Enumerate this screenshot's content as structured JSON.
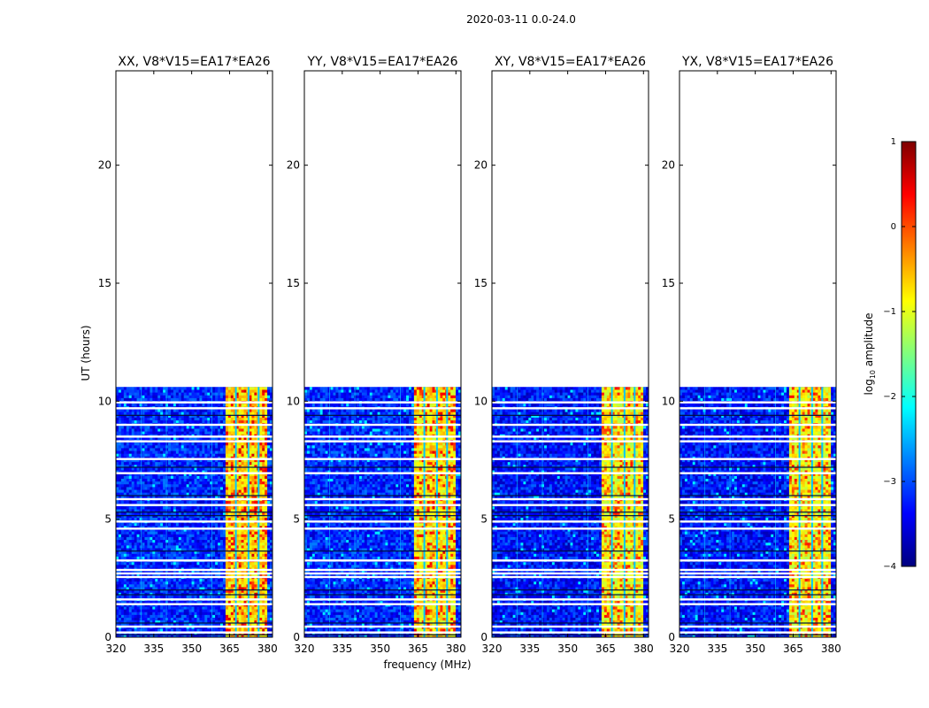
{
  "figure": {
    "suptitle": "2020-03-11 0.0-24.0",
    "ylabel": "UT (hours)",
    "xlabel": "frequency (MHz)"
  },
  "colorbar": {
    "label": "log10 amplitude",
    "label_main": "log",
    "label_sub": "10",
    "label_rest": " amplitude",
    "range": [
      -4,
      1
    ],
    "ticks": [
      1,
      0,
      -1,
      -2,
      -3,
      -4
    ],
    "tick_labels": [
      "1",
      "0",
      "−1",
      "−2",
      "−3",
      "−4"
    ],
    "colormap": [
      "#00007f",
      "#0000ff",
      "#007fff",
      "#00ffff",
      "#7fff7f",
      "#ffff00",
      "#ff7f00",
      "#ff0000",
      "#7f0000"
    ]
  },
  "chart_data": [
    {
      "type": "heatmap",
      "title": "XX, V8*V15=EA17*EA26",
      "xlabel": "frequency (MHz)",
      "ylabel": "UT (hours)",
      "xlim": [
        320,
        382
      ],
      "ylim": [
        0,
        24
      ],
      "xticks": [
        320,
        335,
        350,
        365,
        380
      ],
      "yticks": [
        0,
        5,
        10,
        15,
        20
      ],
      "data_ut_range": [
        0,
        10.6
      ],
      "rfi_band_mhz": [
        363,
        380
      ],
      "typical_log10_amplitude": {
        "background": -3.2,
        "rfi_band": -0.7,
        "rfi_peaks": 0.2
      }
    },
    {
      "type": "heatmap",
      "title": "YY, V8*V15=EA17*EA26",
      "xlabel": "frequency (MHz)",
      "ylabel": "UT (hours)",
      "xlim": [
        320,
        382
      ],
      "ylim": [
        0,
        24
      ],
      "xticks": [
        320,
        335,
        350,
        365,
        380
      ],
      "yticks": [
        0,
        5,
        10,
        15,
        20
      ],
      "data_ut_range": [
        0,
        10.6
      ],
      "rfi_band_mhz": [
        363,
        380
      ],
      "typical_log10_amplitude": {
        "background": -3.2,
        "rfi_band": -0.8,
        "rfi_peaks": 0.1
      }
    },
    {
      "type": "heatmap",
      "title": "XY, V8*V15=EA17*EA26",
      "xlabel": "frequency (MHz)",
      "ylabel": "UT (hours)",
      "xlim": [
        320,
        382
      ],
      "ylim": [
        0,
        24
      ],
      "xticks": [
        320,
        335,
        350,
        365,
        380
      ],
      "yticks": [
        0,
        5,
        10,
        15,
        20
      ],
      "data_ut_range": [
        0,
        10.6
      ],
      "rfi_band_mhz": [
        363,
        380
      ],
      "typical_log10_amplitude": {
        "background": -3.3,
        "rfi_band": -0.9,
        "rfi_peaks": -0.1
      }
    },
    {
      "type": "heatmap",
      "title": "YX, V8*V15=EA17*EA26",
      "xlabel": "frequency (MHz)",
      "ylabel": "UT (hours)",
      "xlim": [
        320,
        382
      ],
      "ylim": [
        0,
        24
      ],
      "xticks": [
        320,
        335,
        350,
        365,
        380
      ],
      "yticks": [
        0,
        5,
        10,
        15,
        20
      ],
      "data_ut_range": [
        0,
        10.6
      ],
      "rfi_band_mhz": [
        363,
        380
      ],
      "typical_log10_amplitude": {
        "background": -3.3,
        "rfi_band": -0.9,
        "rfi_peaks": -0.1
      }
    }
  ],
  "flagged_ut_hours": [
    0.2,
    0.45,
    1.4,
    1.6,
    2.55,
    2.7,
    2.85,
    3.25,
    4.6,
    4.9,
    5.6,
    5.85,
    6.95,
    7.55,
    8.3,
    8.5,
    9.0,
    9.7,
    9.95
  ],
  "dark_ut_hours": [
    0.1,
    0.6,
    1.8,
    2.0,
    3.65,
    5.15,
    5.3,
    6.0,
    7.2,
    9.4
  ],
  "rfi_line_mhz": [
    367.5,
    372.5,
    376.5
  ],
  "bright_line_mhz": [
    330,
    340,
    358
  ]
}
